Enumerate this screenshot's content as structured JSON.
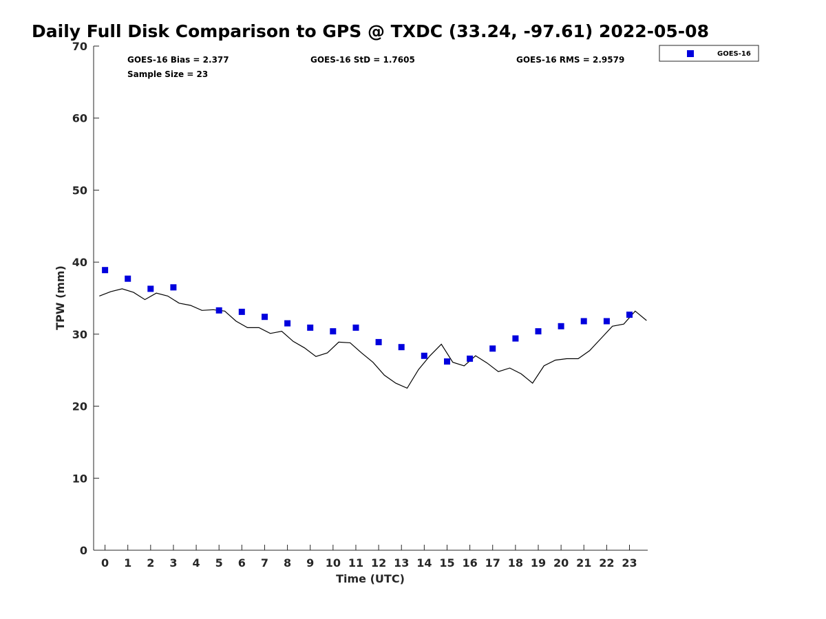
{
  "chart_data": {
    "type": "scatter",
    "title": "Daily Full Disk Comparison to GPS @ TXDC (33.24, -97.61) 2022-05-08",
    "xlabel": "Time (UTC)",
    "ylabel": "TPW (mm)",
    "xlim": [
      -0.5,
      23.8
    ],
    "ylim": [
      0,
      70
    ],
    "x_ticks": [
      0,
      1,
      2,
      3,
      4,
      5,
      6,
      7,
      8,
      9,
      10,
      11,
      12,
      13,
      14,
      15,
      16,
      17,
      18,
      19,
      20,
      21,
      22,
      23
    ],
    "y_ticks": [
      0,
      10,
      20,
      30,
      40,
      50,
      60,
      70
    ],
    "grid": false,
    "legend_position": "top-right",
    "stats": {
      "bias": "GOES-16 Bias = 2.377",
      "std": "GOES-16 StD = 1.7605",
      "rms": "GOES-16 RMS = 2.9579",
      "sample_size": "Sample Size = 23"
    },
    "series": [
      {
        "name": "GOES-16",
        "kind": "scatter",
        "color": "#0000dd",
        "marker": "square",
        "x": [
          0,
          1,
          2,
          3,
          5,
          6,
          7,
          8,
          9,
          10,
          11,
          12,
          13,
          14,
          15,
          16,
          17,
          18,
          19,
          20,
          21,
          22,
          23
        ],
        "y": [
          38.9,
          37.7,
          36.3,
          36.5,
          33.3,
          33.1,
          32.4,
          31.5,
          30.9,
          30.4,
          30.9,
          28.9,
          28.2,
          27.0,
          26.2,
          26.6,
          28.0,
          29.4,
          30.4,
          31.1,
          31.8,
          31.8,
          32.7
        ]
      },
      {
        "kind": "line",
        "color": "#000000",
        "x": [
          -0.25,
          0.25,
          0.75,
          1.25,
          1.75,
          2.25,
          2.75,
          3.25,
          3.75,
          4.25,
          4.75,
          5.25,
          5.75,
          6.25,
          6.75,
          7.25,
          7.75,
          8.25,
          8.75,
          9.25,
          9.75,
          10.25,
          10.75,
          11.25,
          11.75,
          12.25,
          12.75,
          13.25,
          13.75,
          14.25,
          14.75,
          15.25,
          15.75,
          16.25,
          16.75,
          17.25,
          17.75,
          18.25,
          18.75,
          19.25,
          19.75,
          20.25,
          20.75,
          21.25,
          21.75,
          22.25,
          22.75,
          23.25,
          23.75
        ],
        "y": [
          35.3,
          35.9,
          36.3,
          35.8,
          34.8,
          35.7,
          35.3,
          34.3,
          34.0,
          33.3,
          33.4,
          33.2,
          31.8,
          30.9,
          30.9,
          30.1,
          30.4,
          29.0,
          28.1,
          26.9,
          27.4,
          28.9,
          28.8,
          27.4,
          26.1,
          24.3,
          23.2,
          22.5,
          25.1,
          27.0,
          28.6,
          26.1,
          25.6,
          27.0,
          26.0,
          24.8,
          25.3,
          24.5,
          23.2,
          25.6,
          26.4,
          26.6,
          26.6,
          27.7,
          29.4,
          31.1,
          31.4,
          33.2,
          31.9
        ]
      }
    ]
  }
}
